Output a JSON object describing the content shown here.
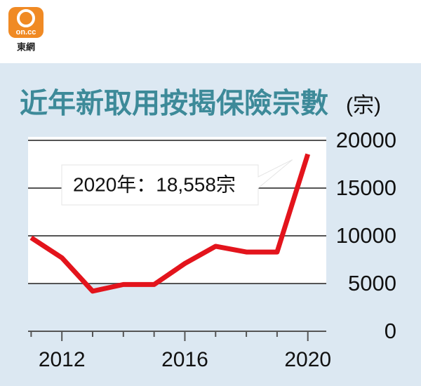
{
  "header": {
    "logo": "on.cc",
    "brand": "東網"
  },
  "chart_data": {
    "type": "line",
    "title": "近年新取用按揭保險宗數",
    "y_unit": "(宗)",
    "annotation": "2020年：18,558宗",
    "x": [
      2011,
      2012,
      2013,
      2014,
      2015,
      2016,
      2017,
      2018,
      2019,
      2020
    ],
    "series": [
      {
        "name": "新取用按揭保險宗數",
        "color": "#e3141c",
        "values": [
          9800,
          7700,
          4200,
          4900,
          4900,
          7100,
          8900,
          8300,
          8300,
          18558
        ]
      }
    ],
    "xlim": [
      2010.9,
      2020.6
    ],
    "xticks": [
      2012,
      2016,
      2020
    ],
    "x_minor_ticks": [
      2011,
      2013,
      2014,
      2015,
      2017,
      2018,
      2019
    ],
    "ylim": [
      0,
      20000
    ],
    "yticks": [
      0,
      5000,
      10000,
      15000,
      20000
    ],
    "grid": true
  }
}
